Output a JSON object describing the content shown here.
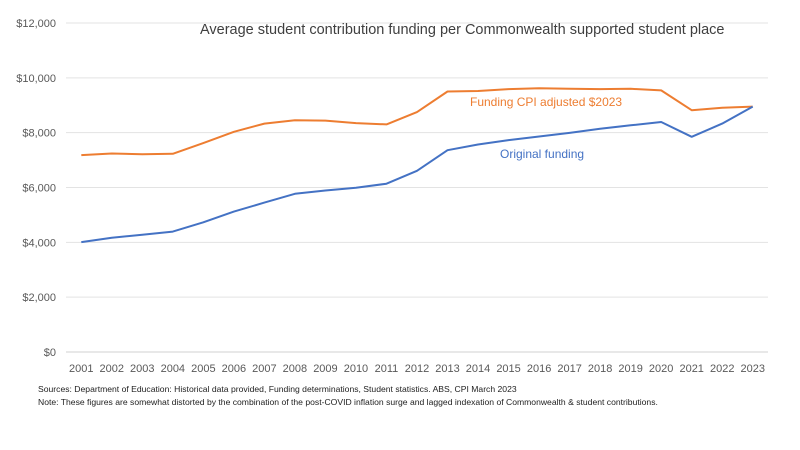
{
  "chart_data": {
    "type": "line",
    "title": "Average student contribution funding per Commonwealth supported student place",
    "xlabel": "",
    "ylabel": "",
    "ylim": [
      0,
      12000
    ],
    "yticks": [
      0,
      2000,
      4000,
      6000,
      8000,
      10000,
      12000
    ],
    "ytick_labels": [
      "$0",
      "$2,000",
      "$4,000",
      "$6,000",
      "$8,000",
      "$10,000",
      "$12,000"
    ],
    "categories": [
      "2001",
      "2002",
      "2003",
      "2004",
      "2005",
      "2006",
      "2007",
      "2008",
      "2009",
      "2010",
      "2011",
      "2012",
      "2013",
      "2014",
      "2015",
      "2016",
      "2017",
      "2018",
      "2019",
      "2020",
      "2021",
      "2022",
      "2023"
    ],
    "grid": true,
    "series": [
      {
        "name": "Funding CPI adjusted $2023",
        "color": "#ed7d31",
        "values": [
          7180,
          7240,
          7210,
          7230,
          7620,
          8030,
          8330,
          8450,
          8440,
          8350,
          8300,
          8750,
          9500,
          9520,
          9590,
          9620,
          9600,
          9590,
          9600,
          9540,
          8820,
          8910,
          8950
        ]
      },
      {
        "name": "Original funding",
        "color": "#4472c4",
        "values": [
          4010,
          4170,
          4280,
          4390,
          4730,
          5120,
          5450,
          5770,
          5890,
          5990,
          6140,
          6610,
          7360,
          7570,
          7730,
          7860,
          7990,
          8140,
          8270,
          8390,
          7850,
          8330,
          8950
        ]
      }
    ]
  },
  "footnotes": {
    "sources": "Sources: Department of Education: Historical data provided, Funding determinations, Student statistics. ABS, CPI March 2023",
    "note": "Note: These figures are somewhat distorted by the combination of the post-COVID inflation surge and lagged indexation of Commonwealth & student contributions."
  }
}
